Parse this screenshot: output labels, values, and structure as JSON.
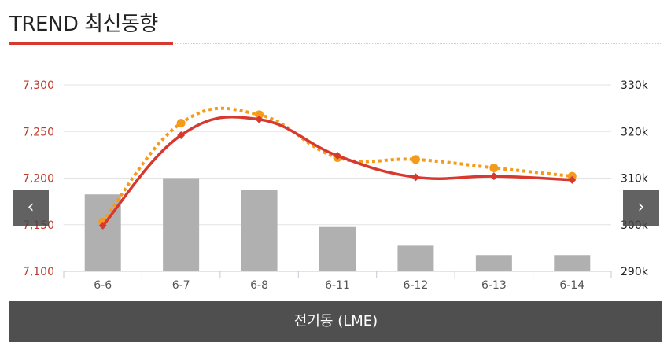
{
  "header": {
    "title": "TREND 최신동향"
  },
  "nav": {
    "prev_symbol": "‹",
    "next_symbol": "›"
  },
  "footer": {
    "label": "전기동 (LME)"
  },
  "colors": {
    "line_primary": "#d8392f",
    "line_dotted": "#f59b1b",
    "bar": "#b0b0b0",
    "left_axis_text": "#c0392b",
    "right_axis_text": "#222222"
  },
  "chart_data": {
    "type": "bar+line",
    "categories": [
      "6-6",
      "6-7",
      "6-8",
      "6-11",
      "6-12",
      "6-13",
      "6-14"
    ],
    "left_axis": {
      "ylim": [
        7100,
        7300
      ],
      "ticks": [
        "7,100",
        "7,150",
        "7,200",
        "7,250",
        "7,300"
      ]
    },
    "right_axis": {
      "ylim": [
        290000,
        330000
      ],
      "ticks": [
        "290k",
        "300k",
        "310k",
        "320k",
        "330k"
      ]
    },
    "series": [
      {
        "type": "line",
        "style": "solid",
        "axis": "left",
        "values": [
          7149,
          7246,
          7263,
          7224,
          7201,
          7202,
          7198
        ]
      },
      {
        "type": "line",
        "style": "dotted",
        "axis": "left",
        "values": [
          7153,
          7259,
          7268,
          7222,
          7220,
          7211,
          7202
        ]
      },
      {
        "type": "bar",
        "axis": "right",
        "values": [
          306500,
          310000,
          307500,
          299500,
          295500,
          293500,
          293500
        ]
      }
    ],
    "grid": true,
    "legend": "none"
  }
}
